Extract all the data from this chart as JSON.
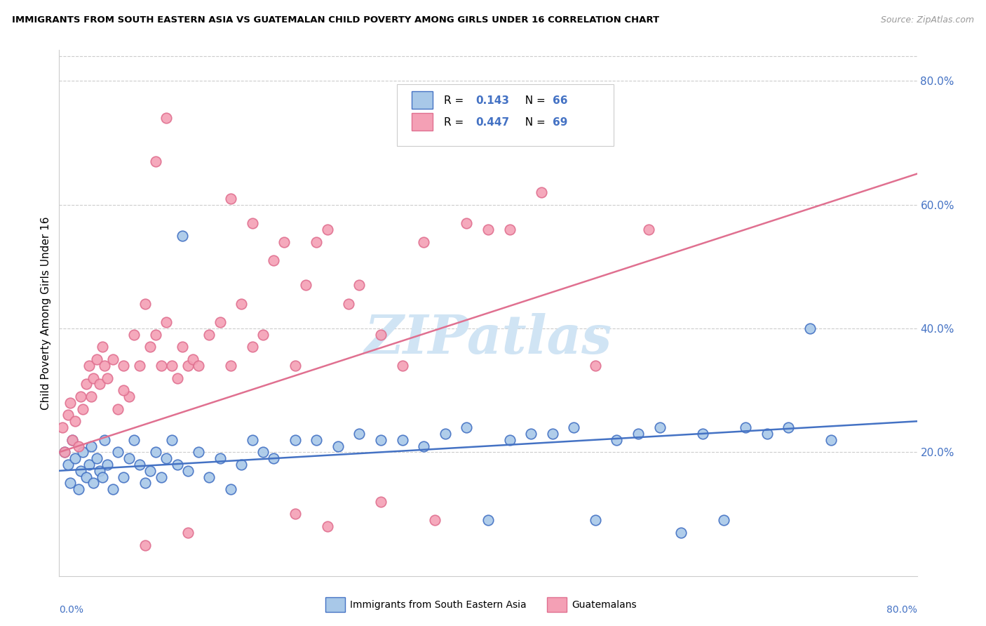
{
  "title": "IMMIGRANTS FROM SOUTH EASTERN ASIA VS GUATEMALAN CHILD POVERTY AMONG GIRLS UNDER 16 CORRELATION CHART",
  "source": "Source: ZipAtlas.com",
  "ylabel": "Child Poverty Among Girls Under 16",
  "legend_label1": "Immigrants from South Eastern Asia",
  "legend_label2": "Guatemalans",
  "R1": "0.143",
  "N1": "66",
  "R2": "0.447",
  "N2": "69",
  "color_blue": "#a8c8e8",
  "color_pink": "#f4a0b5",
  "color_blue_dark": "#4472c4",
  "color_pink_dark": "#e07090",
  "watermark_color": "#d0e4f4",
  "xlim": [
    0,
    80
  ],
  "ylim": [
    0,
    85
  ],
  "figsize": [
    14.06,
    8.92
  ],
  "dpi": 100,
  "blue_x": [
    0.5,
    0.8,
    1.0,
    1.2,
    1.5,
    1.8,
    2.0,
    2.2,
    2.5,
    2.8,
    3.0,
    3.2,
    3.5,
    3.8,
    4.0,
    4.2,
    4.5,
    5.0,
    5.5,
    6.0,
    6.5,
    7.0,
    7.5,
    8.0,
    8.5,
    9.0,
    9.5,
    10.0,
    10.5,
    11.0,
    11.5,
    12.0,
    13.0,
    14.0,
    15.0,
    16.0,
    17.0,
    18.0,
    19.0,
    20.0,
    22.0,
    24.0,
    26.0,
    28.0,
    30.0,
    32.0,
    34.0,
    36.0,
    38.0,
    40.0,
    42.0,
    44.0,
    46.0,
    48.0,
    50.0,
    52.0,
    54.0,
    56.0,
    58.0,
    60.0,
    62.0,
    64.0,
    66.0,
    68.0,
    70.0,
    72.0
  ],
  "blue_y": [
    20.0,
    18.0,
    15.0,
    22.0,
    19.0,
    14.0,
    17.0,
    20.0,
    16.0,
    18.0,
    21.0,
    15.0,
    19.0,
    17.0,
    16.0,
    22.0,
    18.0,
    14.0,
    20.0,
    16.0,
    19.0,
    22.0,
    18.0,
    15.0,
    17.0,
    20.0,
    16.0,
    19.0,
    22.0,
    18.0,
    55.0,
    17.0,
    20.0,
    16.0,
    19.0,
    14.0,
    18.0,
    22.0,
    20.0,
    19.0,
    22.0,
    22.0,
    21.0,
    23.0,
    22.0,
    22.0,
    21.0,
    23.0,
    24.0,
    9.0,
    22.0,
    23.0,
    23.0,
    24.0,
    9.0,
    22.0,
    23.0,
    24.0,
    7.0,
    23.0,
    9.0,
    24.0,
    23.0,
    24.0,
    40.0,
    22.0
  ],
  "pink_x": [
    0.3,
    0.5,
    0.8,
    1.0,
    1.2,
    1.5,
    1.8,
    2.0,
    2.2,
    2.5,
    2.8,
    3.0,
    3.2,
    3.5,
    3.8,
    4.0,
    4.2,
    4.5,
    5.0,
    5.5,
    6.0,
    6.5,
    7.0,
    7.5,
    8.0,
    8.5,
    9.0,
    9.5,
    10.0,
    10.5,
    11.0,
    11.5,
    12.0,
    12.5,
    13.0,
    14.0,
    15.0,
    16.0,
    17.0,
    18.0,
    19.0,
    20.0,
    21.0,
    22.0,
    23.0,
    24.0,
    25.0,
    27.0,
    28.0,
    30.0,
    32.0,
    34.0,
    10.0,
    38.0,
    40.0,
    18.0,
    42.0,
    45.0,
    50.0,
    55.0,
    16.0,
    9.0,
    12.0,
    8.0,
    22.0,
    25.0,
    30.0,
    35.0,
    6.0
  ],
  "pink_y": [
    24.0,
    20.0,
    26.0,
    28.0,
    22.0,
    25.0,
    21.0,
    29.0,
    27.0,
    31.0,
    34.0,
    29.0,
    32.0,
    35.0,
    31.0,
    37.0,
    34.0,
    32.0,
    35.0,
    27.0,
    34.0,
    29.0,
    39.0,
    34.0,
    44.0,
    37.0,
    39.0,
    34.0,
    41.0,
    34.0,
    32.0,
    37.0,
    34.0,
    35.0,
    34.0,
    39.0,
    41.0,
    34.0,
    44.0,
    37.0,
    39.0,
    51.0,
    54.0,
    34.0,
    47.0,
    54.0,
    56.0,
    44.0,
    47.0,
    39.0,
    34.0,
    54.0,
    74.0,
    57.0,
    56.0,
    57.0,
    56.0,
    62.0,
    34.0,
    56.0,
    61.0,
    67.0,
    7.0,
    5.0,
    10.0,
    8.0,
    12.0,
    9.0,
    30.0
  ]
}
